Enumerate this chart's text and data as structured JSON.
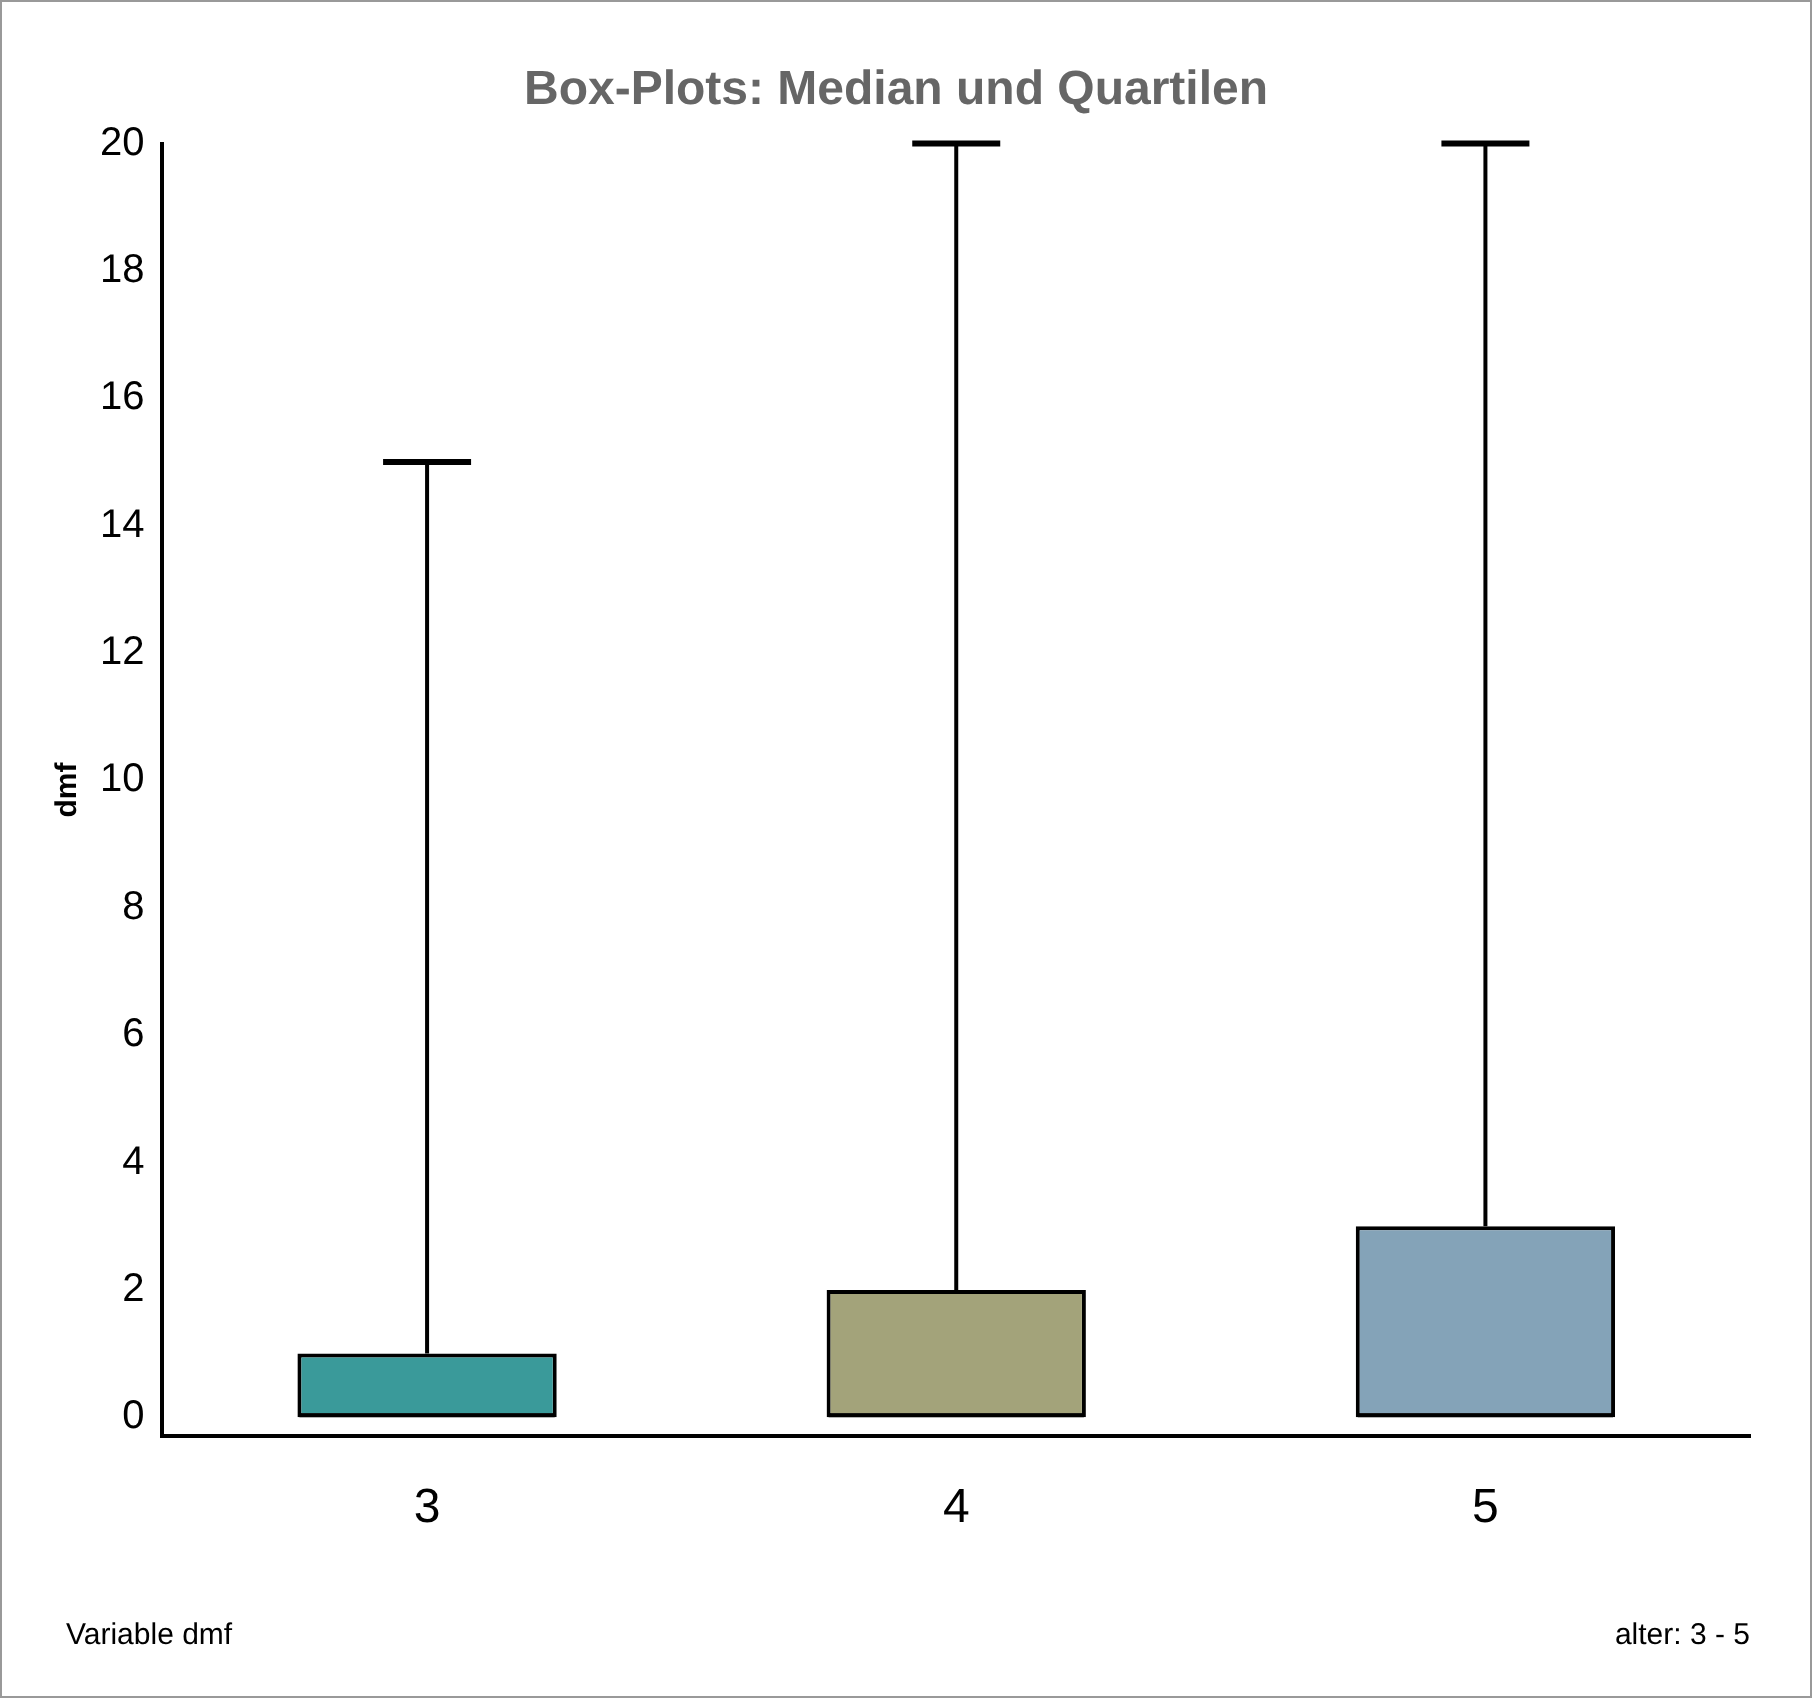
{
  "chart_data": {
    "type": "box",
    "title": "Box-Plots: Median und Quartilen",
    "ylabel": "dmf",
    "categories": [
      "3",
      "4",
      "5"
    ],
    "boxes": [
      {
        "low": 0,
        "q1": 0,
        "median": 0,
        "q3": 1,
        "high": 15
      },
      {
        "low": 0,
        "q1": 0,
        "median": 0,
        "q3": 2,
        "high": 20
      },
      {
        "low": 0,
        "q1": 0,
        "median": 0,
        "q3": 3,
        "high": 20
      }
    ],
    "colors": [
      "#3a9a9a",
      "#a3a37a",
      "#84a3b8"
    ],
    "ylim": [
      -0.3,
      20
    ],
    "yticks": [
      0,
      2,
      4,
      6,
      8,
      10,
      12,
      14,
      16,
      18,
      20
    ],
    "grid": false,
    "legend": false,
    "annotations": [
      "Variable dmf",
      "alter: 3 - 5"
    ]
  }
}
